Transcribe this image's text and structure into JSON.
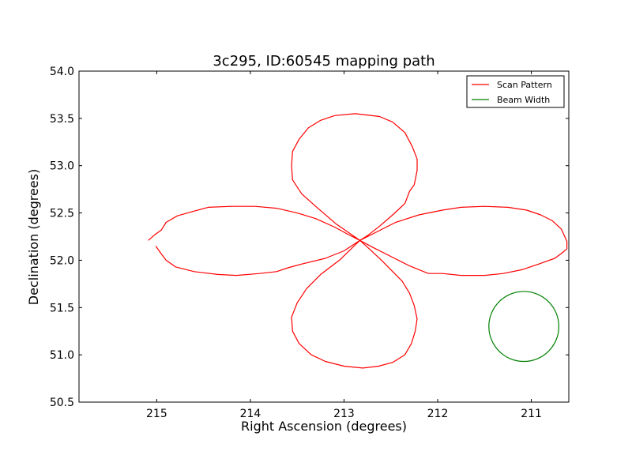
{
  "chart_data": {
    "type": "line",
    "title": "3c295, ID:60545 mapping path",
    "xlabel": "Right Ascension (degrees)",
    "ylabel": "Declination (degrees)",
    "xlim": [
      215.83,
      210.6
    ],
    "ylim": [
      50.5,
      54.0
    ],
    "x_inverted": true,
    "xticks": [
      215,
      214,
      213,
      212,
      211
    ],
    "xtick_labels": [
      "215",
      "214",
      "213",
      "212",
      "211"
    ],
    "yticks": [
      50.5,
      51.0,
      51.5,
      52.0,
      52.5,
      53.0,
      53.5,
      54.0
    ],
    "ytick_labels": [
      "50.5",
      "51.0",
      "51.5",
      "52.0",
      "52.5",
      "53.0",
      "53.5",
      "54.0"
    ],
    "grid": false,
    "legend_position": "top-right",
    "series": [
      {
        "name": "Scan Pattern",
        "color": "#ff0000",
        "points": [
          [
            215.09,
            52.21
          ],
          [
            215.02,
            52.27
          ],
          [
            214.95,
            52.32
          ],
          [
            214.9,
            52.4
          ],
          [
            214.78,
            52.47
          ],
          [
            214.6,
            52.52
          ],
          [
            214.45,
            52.56
          ],
          [
            214.2,
            52.57
          ],
          [
            213.95,
            52.57
          ],
          [
            213.72,
            52.55
          ],
          [
            213.5,
            52.5
          ],
          [
            213.3,
            52.44
          ],
          [
            213.1,
            52.35
          ],
          [
            212.95,
            52.27
          ],
          [
            212.83,
            52.21
          ],
          [
            212.75,
            52.26
          ],
          [
            212.62,
            52.36
          ],
          [
            212.48,
            52.48
          ],
          [
            212.35,
            52.6
          ],
          [
            212.3,
            52.73
          ],
          [
            212.25,
            52.8
          ],
          [
            212.22,
            52.95
          ],
          [
            212.22,
            53.07
          ],
          [
            212.27,
            53.2
          ],
          [
            212.35,
            53.35
          ],
          [
            212.48,
            53.46
          ],
          [
            212.62,
            53.52
          ],
          [
            212.88,
            53.55
          ],
          [
            213.1,
            53.53
          ],
          [
            213.25,
            53.48
          ],
          [
            213.38,
            53.4
          ],
          [
            213.48,
            53.28
          ],
          [
            213.55,
            53.15
          ],
          [
            213.56,
            53.0
          ],
          [
            213.55,
            52.85
          ],
          [
            213.45,
            52.7
          ],
          [
            213.28,
            52.55
          ],
          [
            213.08,
            52.38
          ],
          [
            212.83,
            52.21
          ],
          [
            212.65,
            52.3
          ],
          [
            212.45,
            52.4
          ],
          [
            212.2,
            52.48
          ],
          [
            211.95,
            52.53
          ],
          [
            211.75,
            52.56
          ],
          [
            211.5,
            52.57
          ],
          [
            211.25,
            52.56
          ],
          [
            211.05,
            52.53
          ],
          [
            210.9,
            52.48
          ],
          [
            210.78,
            52.42
          ],
          [
            210.68,
            52.33
          ],
          [
            210.62,
            52.2
          ],
          [
            210.62,
            52.12
          ],
          [
            210.68,
            52.07
          ],
          [
            210.75,
            52.02
          ],
          [
            210.92,
            51.96
          ],
          [
            211.1,
            51.9
          ],
          [
            211.3,
            51.86
          ],
          [
            211.5,
            51.84
          ],
          [
            211.75,
            51.84
          ],
          [
            211.95,
            51.86
          ],
          [
            212.1,
            51.86
          ],
          [
            212.3,
            51.94
          ],
          [
            212.5,
            52.04
          ],
          [
            212.7,
            52.14
          ],
          [
            212.83,
            52.21
          ],
          [
            212.73,
            52.12
          ],
          [
            212.6,
            52.0
          ],
          [
            212.48,
            51.88
          ],
          [
            212.38,
            51.78
          ],
          [
            212.3,
            51.65
          ],
          [
            212.25,
            51.52
          ],
          [
            212.22,
            51.38
          ],
          [
            212.24,
            51.25
          ],
          [
            212.28,
            51.12
          ],
          [
            212.35,
            51.0
          ],
          [
            212.48,
            50.92
          ],
          [
            212.63,
            50.88
          ],
          [
            212.8,
            50.86
          ],
          [
            213.0,
            50.88
          ],
          [
            213.2,
            50.93
          ],
          [
            213.35,
            51.0
          ],
          [
            213.48,
            51.12
          ],
          [
            213.55,
            51.25
          ],
          [
            213.56,
            51.4
          ],
          [
            213.5,
            51.55
          ],
          [
            213.4,
            51.7
          ],
          [
            213.25,
            51.85
          ],
          [
            213.05,
            52.0
          ],
          [
            212.83,
            52.21
          ],
          [
            213.0,
            52.1
          ],
          [
            213.2,
            52.02
          ],
          [
            213.45,
            51.96
          ],
          [
            213.6,
            51.92
          ],
          [
            213.72,
            51.88
          ],
          [
            213.9,
            51.86
          ],
          [
            214.15,
            51.84
          ],
          [
            214.35,
            51.85
          ],
          [
            214.6,
            51.88
          ],
          [
            214.8,
            51.93
          ],
          [
            214.9,
            52.0
          ],
          [
            214.96,
            52.08
          ],
          [
            215.01,
            52.15
          ]
        ]
      },
      {
        "name": "Beam Width",
        "color": "#008000",
        "shape": "circle",
        "center": [
          211.08,
          51.3
        ],
        "radius_y": 0.37
      }
    ]
  }
}
